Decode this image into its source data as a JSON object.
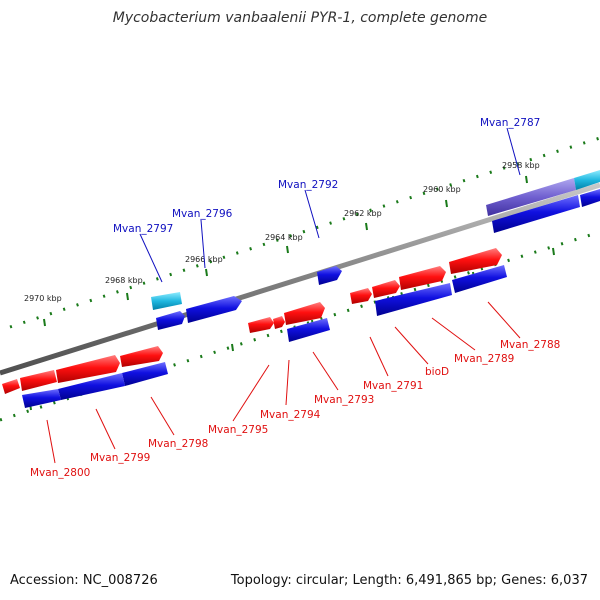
{
  "title": "Mycobacterium vanbaalenii PYR-1, complete genome",
  "footer": {
    "accession": "Accession: NC_008726",
    "topology": "Topology: circular; Length: 6,491,865 bp; Genes: 6,037"
  },
  "colors": {
    "forward_cds": "#ff1010",
    "reverse_cds": "#1010e0",
    "rna": "#20b8e0",
    "pseudo": "#7060d0",
    "backbone": "#808080",
    "ticks": "#1a7a1a",
    "label_top": "#1010c0",
    "label_bottom": "#e01010"
  },
  "scale_labels": [
    "2958 kbp",
    "2960 kbp",
    "2962 kbp",
    "2964 kbp",
    "2966 kbp",
    "2968 kbp",
    "2970 kbp"
  ],
  "top_gene_labels": [
    "Mvan_2787",
    "Mvan_2792",
    "Mvan_2796",
    "Mvan_2797"
  ],
  "bottom_gene_labels": [
    "Mvan_2788",
    "Mvan_2789",
    "bioD",
    "Mvan_2791",
    "Mvan_2793",
    "Mvan_2794",
    "Mvan_2795",
    "Mvan_2798",
    "Mvan_2799",
    "Mvan_2800"
  ]
}
